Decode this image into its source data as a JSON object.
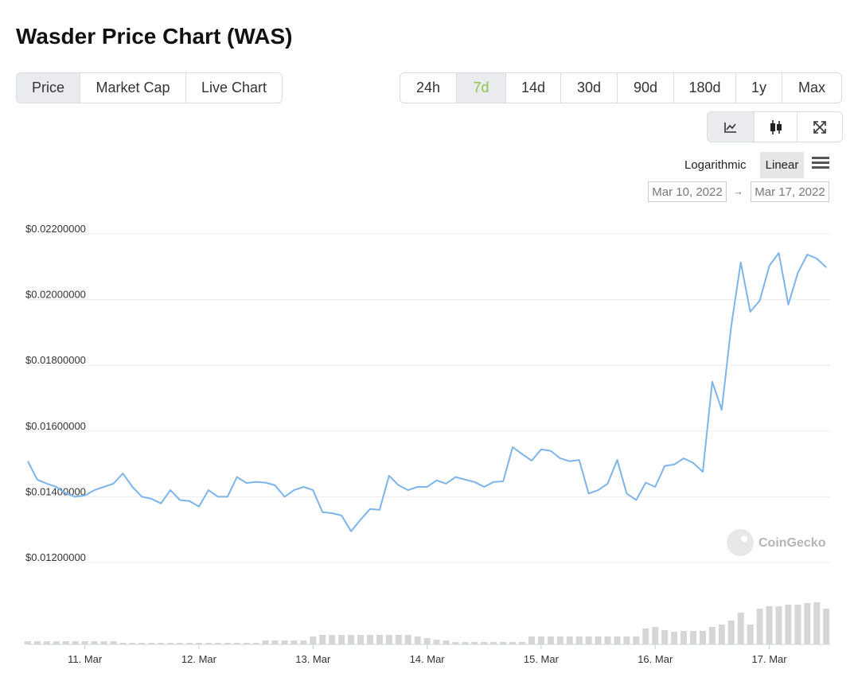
{
  "ui": {
    "title": "Wasder Price Chart (WAS)",
    "tabs": [
      "Price",
      "Market Cap",
      "Live Chart"
    ],
    "ranges": [
      "24h",
      "7d",
      "14d",
      "30d",
      "90d",
      "180d",
      "1y",
      "Max"
    ],
    "scales": [
      "Logarithmic",
      "Linear"
    ],
    "date_from": "Mar 10, 2022",
    "arrow": "→",
    "date_to": "Mar 17, 2022",
    "watermark": "CoinGecko"
  },
  "chart_data": {
    "type": "line",
    "color": "#7cb5ec",
    "volume_color": "#d6d6d6",
    "ylim": [
      0.012,
      0.022
    ],
    "yticks": [
      {
        "value": 0.012,
        "label": "$0.01200000"
      },
      {
        "value": 0.014,
        "label": "$0.01400000"
      },
      {
        "value": 0.016,
        "label": "$0.01600000"
      },
      {
        "value": 0.018,
        "label": "$0.01800000"
      },
      {
        "value": 0.02,
        "label": "$0.02000000"
      },
      {
        "value": 0.022,
        "label": "$0.02200000"
      }
    ],
    "xlim": [
      0,
      84.4
    ],
    "xticks": [
      {
        "value": 6,
        "label": "11. Mar"
      },
      {
        "value": 18,
        "label": "12. Mar"
      },
      {
        "value": 30,
        "label": "13. Mar"
      },
      {
        "value": 42,
        "label": "14. Mar"
      },
      {
        "value": 54,
        "label": "15. Mar"
      },
      {
        "value": 66,
        "label": "16. Mar"
      },
      {
        "value": 78,
        "label": "17. Mar"
      }
    ],
    "grid": true,
    "values": [
      0.01508,
      0.01452,
      0.0144,
      0.0143,
      0.0141,
      0.014,
      0.01404,
      0.0142,
      0.0143,
      0.0144,
      0.01471,
      0.0143,
      0.014,
      0.01394,
      0.0138,
      0.0142,
      0.0139,
      0.01387,
      0.0137,
      0.0142,
      0.014,
      0.014,
      0.0146,
      0.01442,
      0.01445,
      0.01443,
      0.01435,
      0.014,
      0.0142,
      0.0143,
      0.0142,
      0.01353,
      0.0135,
      0.01343,
      0.01295,
      0.0133,
      0.01363,
      0.0136,
      0.01464,
      0.01435,
      0.0142,
      0.0143,
      0.0143,
      0.0145,
      0.0144,
      0.0146,
      0.01452,
      0.01445,
      0.0143,
      0.01445,
      0.01447,
      0.01551,
      0.0153,
      0.0151,
      0.01544,
      0.0154,
      0.01517,
      0.01508,
      0.01512,
      0.0141,
      0.0142,
      0.0144,
      0.01512,
      0.0141,
      0.0139,
      0.01443,
      0.0143,
      0.01494,
      0.01498,
      0.01517,
      0.01503,
      0.01476,
      0.0175,
      0.01665,
      0.0192,
      0.02113,
      0.01963,
      0.01997,
      0.02103,
      0.02142,
      0.01985,
      0.02081,
      0.02137,
      0.02125,
      0.02098
    ],
    "volume_ylim": [
      0,
      55
    ],
    "volume": [
      4,
      4,
      4,
      4,
      4,
      4,
      4,
      4,
      4,
      4,
      2,
      2,
      2,
      2,
      2,
      2,
      2,
      2,
      2,
      2,
      2,
      2,
      2,
      2,
      2,
      5,
      5,
      5,
      5,
      5,
      10,
      12,
      12,
      12,
      12,
      12,
      12,
      12,
      12,
      12,
      12,
      10,
      8,
      6,
      5,
      3,
      3,
      3,
      3,
      3,
      3,
      3,
      3,
      10,
      10,
      10,
      10,
      10,
      10,
      10,
      10,
      10,
      10,
      10,
      10,
      20,
      22,
      18,
      16,
      17,
      17,
      17,
      22,
      25,
      30,
      40,
      25,
      45,
      48,
      48,
      50,
      50,
      52,
      53,
      45
    ]
  }
}
